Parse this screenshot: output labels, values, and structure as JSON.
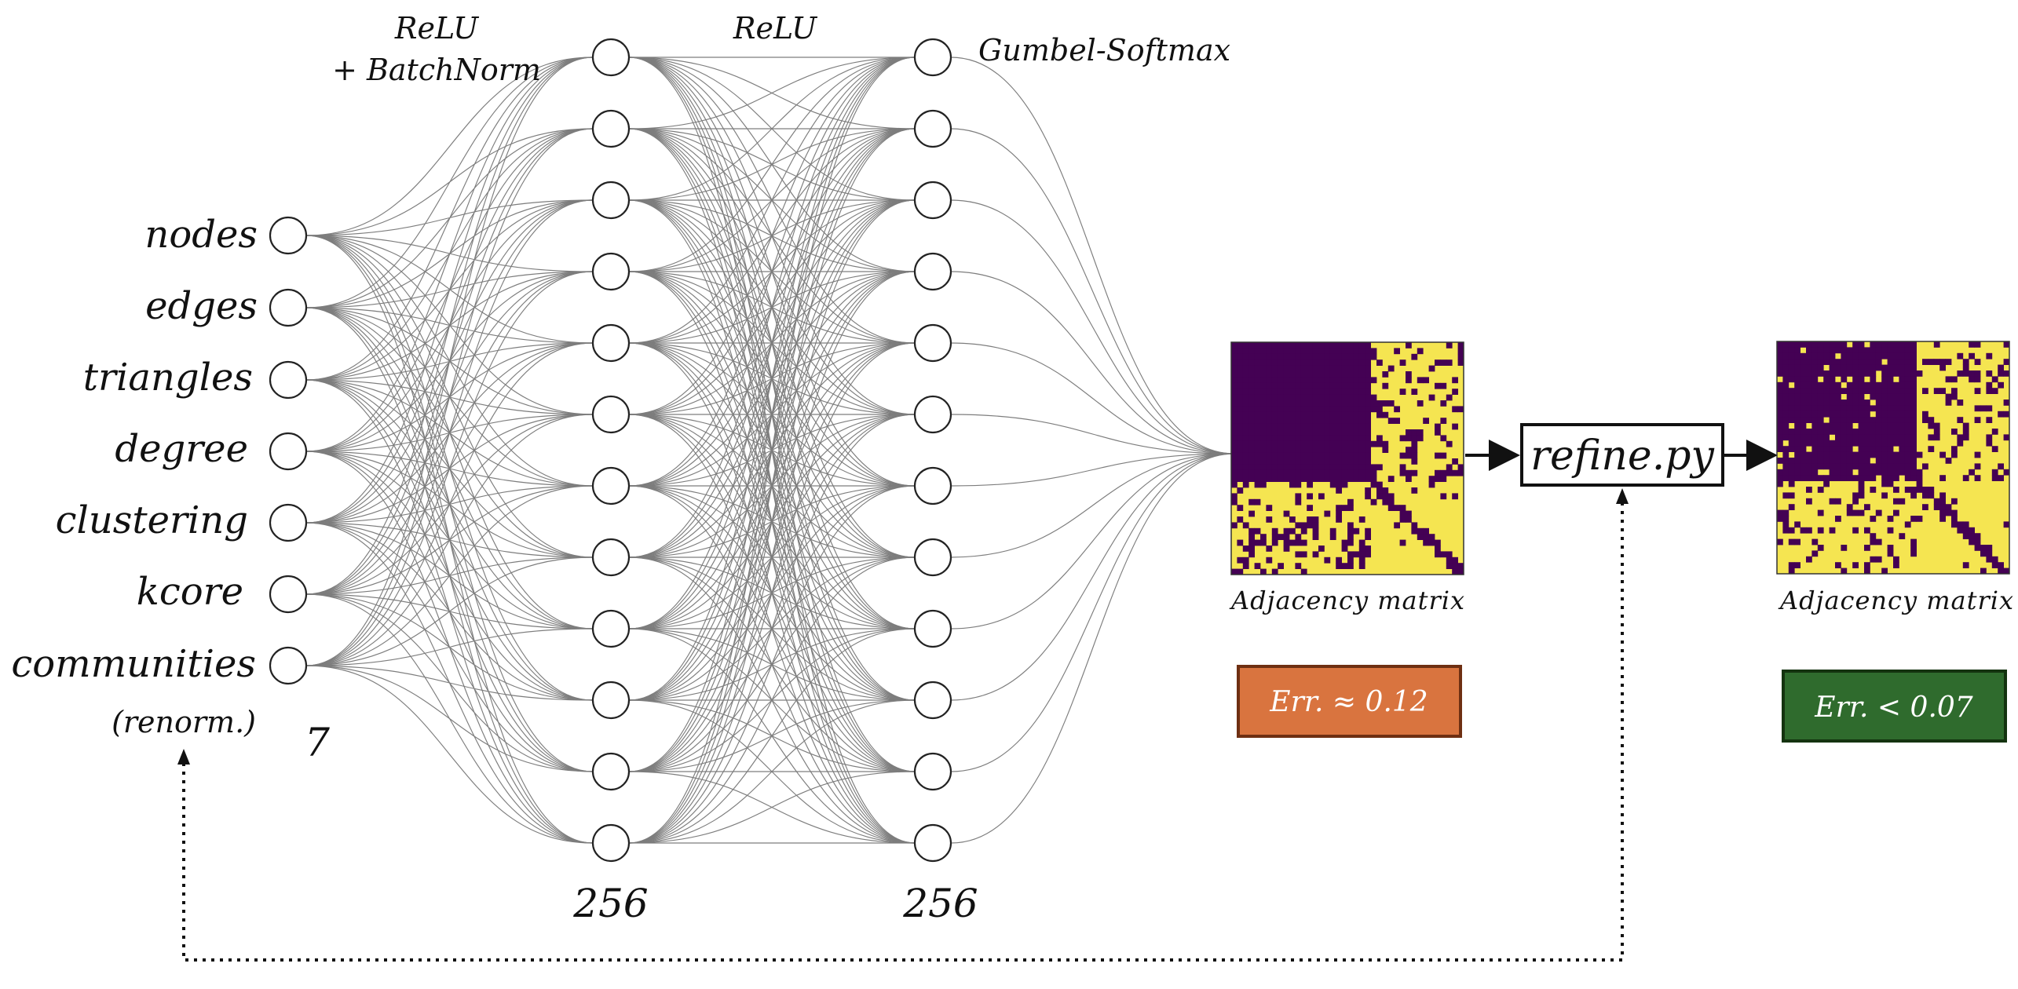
{
  "input_layer": {
    "labels": [
      "nodes",
      "edges",
      "triangles",
      "degree",
      "clustering",
      "kcore",
      "communities"
    ],
    "note": "(renorm.)",
    "size_label": "7"
  },
  "hidden_layer_1": {
    "activation": "ReLU",
    "activation_extra": "+ BatchNorm",
    "size_label": "256"
  },
  "hidden_layer_2": {
    "activation": "ReLU",
    "size_label": "256"
  },
  "output_layer": {
    "activation": "Gumbel-Softmax"
  },
  "matrix_before": {
    "caption": "Adjacency matrix",
    "error_label": "Err. ≈ 0.12",
    "error_color": "#d9743f",
    "error_border": "#6e2f12"
  },
  "refine_step": {
    "label": "refine.py"
  },
  "matrix_after": {
    "caption": "Adjacency matrix",
    "error_label": "Err. < 0.07",
    "error_color": "#2f6b2d",
    "error_border": "#14330f"
  },
  "colors": {
    "matrix_dark": "#440154",
    "matrix_light": "#f5e551",
    "edge": "#7d7d7d"
  }
}
